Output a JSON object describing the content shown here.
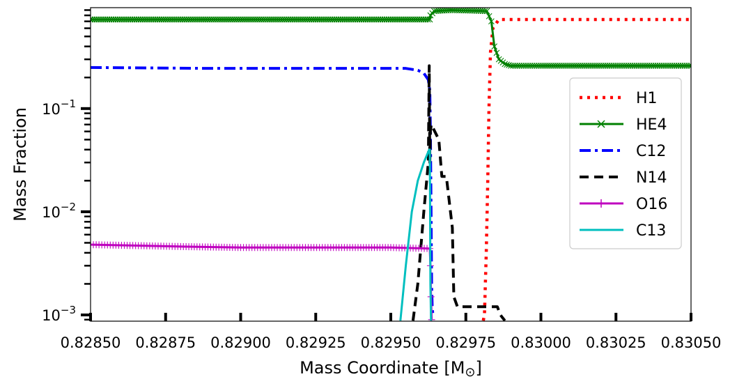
{
  "chart_data": {
    "type": "line",
    "title": "",
    "xlabel": "Mass Coordinate [M",
    "xlabel_subscript": "⊙",
    "xlabel_end": "]",
    "ylabel": "Mass Fraction",
    "xlim": [
      0.8285,
      0.8305
    ],
    "ylim": [
      0.00087,
      0.95
    ],
    "yscale": "log",
    "grid": false,
    "legend_position": "right",
    "x_ticks": [
      0.8285,
      0.82875,
      0.829,
      0.82925,
      0.8295,
      0.82975,
      0.83,
      0.83025,
      0.8305
    ],
    "x_tick_labels": [
      "0.82850",
      "0.82875",
      "0.82900",
      "0.82925",
      "0.82950",
      "0.82975",
      "0.83000",
      "0.83025",
      "0.83050"
    ],
    "y_major_ticks": [
      0.001,
      0.01,
      0.1
    ],
    "y_tick_labels": [
      {
        "base": "10",
        "exp": "−3"
      },
      {
        "base": "10",
        "exp": "−2"
      },
      {
        "base": "10",
        "exp": "−1"
      }
    ],
    "series": [
      {
        "name": "H1",
        "color": "#ff0000",
        "style": "dotted",
        "x": [
          0.829808,
          0.829812,
          0.829818,
          0.829823,
          0.829827,
          0.829832,
          0.82984,
          0.82986,
          0.83,
          0.8305
        ],
        "y": [
          0.00088,
          0.001,
          0.004,
          0.02,
          0.1,
          0.35,
          0.6,
          0.73,
          0.73,
          0.73
        ]
      },
      {
        "name": "HE4",
        "color": "#008000",
        "style": "x-marker",
        "x": [
          0.8285,
          0.829,
          0.8295,
          0.82963,
          0.829632,
          0.829645,
          0.8297,
          0.82982,
          0.829835,
          0.829845,
          0.82986,
          0.82988,
          0.8299,
          0.83,
          0.8305
        ],
        "y": [
          0.73,
          0.73,
          0.73,
          0.73,
          0.8,
          0.88,
          0.9,
          0.88,
          0.7,
          0.4,
          0.3,
          0.27,
          0.26,
          0.26,
          0.26
        ]
      },
      {
        "name": "C12",
        "color": "#0000ff",
        "style": "dashdot",
        "x": [
          0.8285,
          0.8289,
          0.8293,
          0.82955,
          0.82959,
          0.82961,
          0.829625,
          0.82963,
          0.829632,
          0.829634,
          0.829636,
          0.829638,
          0.829641
        ],
        "y": [
          0.25,
          0.245,
          0.245,
          0.245,
          0.235,
          0.22,
          0.19,
          0.15,
          0.06,
          0.012,
          0.002,
          0.0012,
          0.00095
        ]
      },
      {
        "name": "N14",
        "color": "#000000",
        "style": "dashed",
        "x": [
          0.829574,
          0.82959,
          0.82961,
          0.829625,
          0.829628,
          0.82963,
          0.829632,
          0.829635,
          0.82966,
          0.82967,
          0.829685,
          0.829705,
          0.82971,
          0.829722,
          0.82976,
          0.82981,
          0.829855,
          0.829865,
          0.82988
        ],
        "y": [
          0.00088,
          0.002,
          0.01,
          0.03,
          0.26,
          0.03,
          0.06,
          0.07,
          0.05,
          0.022,
          0.022,
          0.007,
          0.0015,
          0.0012,
          0.0012,
          0.0012,
          0.0012,
          0.001,
          0.00088
        ]
      },
      {
        "name": "O16",
        "color": "#bf00bf",
        "style": "plus-marker",
        "x": [
          0.8285,
          0.8288,
          0.829,
          0.8293,
          0.8295,
          0.82963,
          0.829632,
          0.829634,
          0.829636
        ],
        "y": [
          0.0048,
          0.0046,
          0.0045,
          0.0045,
          0.0045,
          0.0044,
          0.003,
          0.0015,
          0.0009
        ]
      },
      {
        "name": "C13",
        "color": "#00bfbf",
        "style": "solid",
        "x": [
          0.829532,
          0.82955,
          0.82957,
          0.82959,
          0.82961,
          0.829628,
          0.82963,
          0.829631,
          0.829632,
          0.829634
        ],
        "y": [
          0.00088,
          0.003,
          0.01,
          0.02,
          0.03,
          0.04,
          0.04,
          0.01,
          0.002,
          0.00088
        ]
      }
    ]
  }
}
